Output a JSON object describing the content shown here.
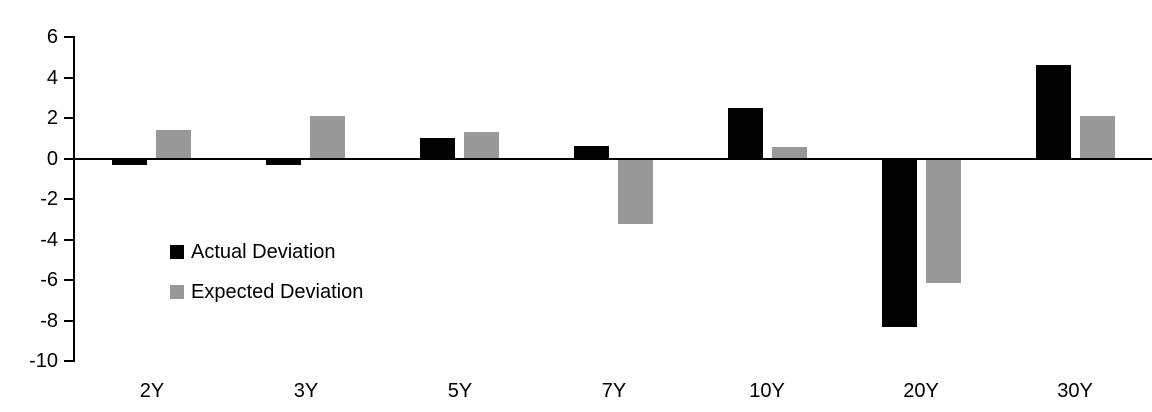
{
  "chart_data": {
    "type": "bar",
    "title": "",
    "xlabel": "",
    "ylabel": "",
    "categories": [
      "2Y",
      "3Y",
      "5Y",
      "7Y",
      "10Y",
      "20Y",
      "30Y"
    ],
    "series": [
      {
        "name": "Actual Deviation",
        "color": "#000000",
        "values": [
          -0.3,
          -0.3,
          1.0,
          0.6,
          2.5,
          -8.3,
          4.6
        ]
      },
      {
        "name": "Expected Deviation",
        "color": "#999999",
        "values": [
          1.4,
          2.1,
          1.3,
          -3.2,
          0.55,
          -6.1,
          2.1
        ]
      }
    ],
    "ylim": [
      -10,
      6
    ],
    "yticks": [
      6,
      4,
      2,
      0,
      -2,
      -4,
      -6,
      -8,
      -10
    ],
    "grid": false,
    "legend_position": "inside-left",
    "axis_color": "#000000",
    "background_color": "#ffffff"
  }
}
